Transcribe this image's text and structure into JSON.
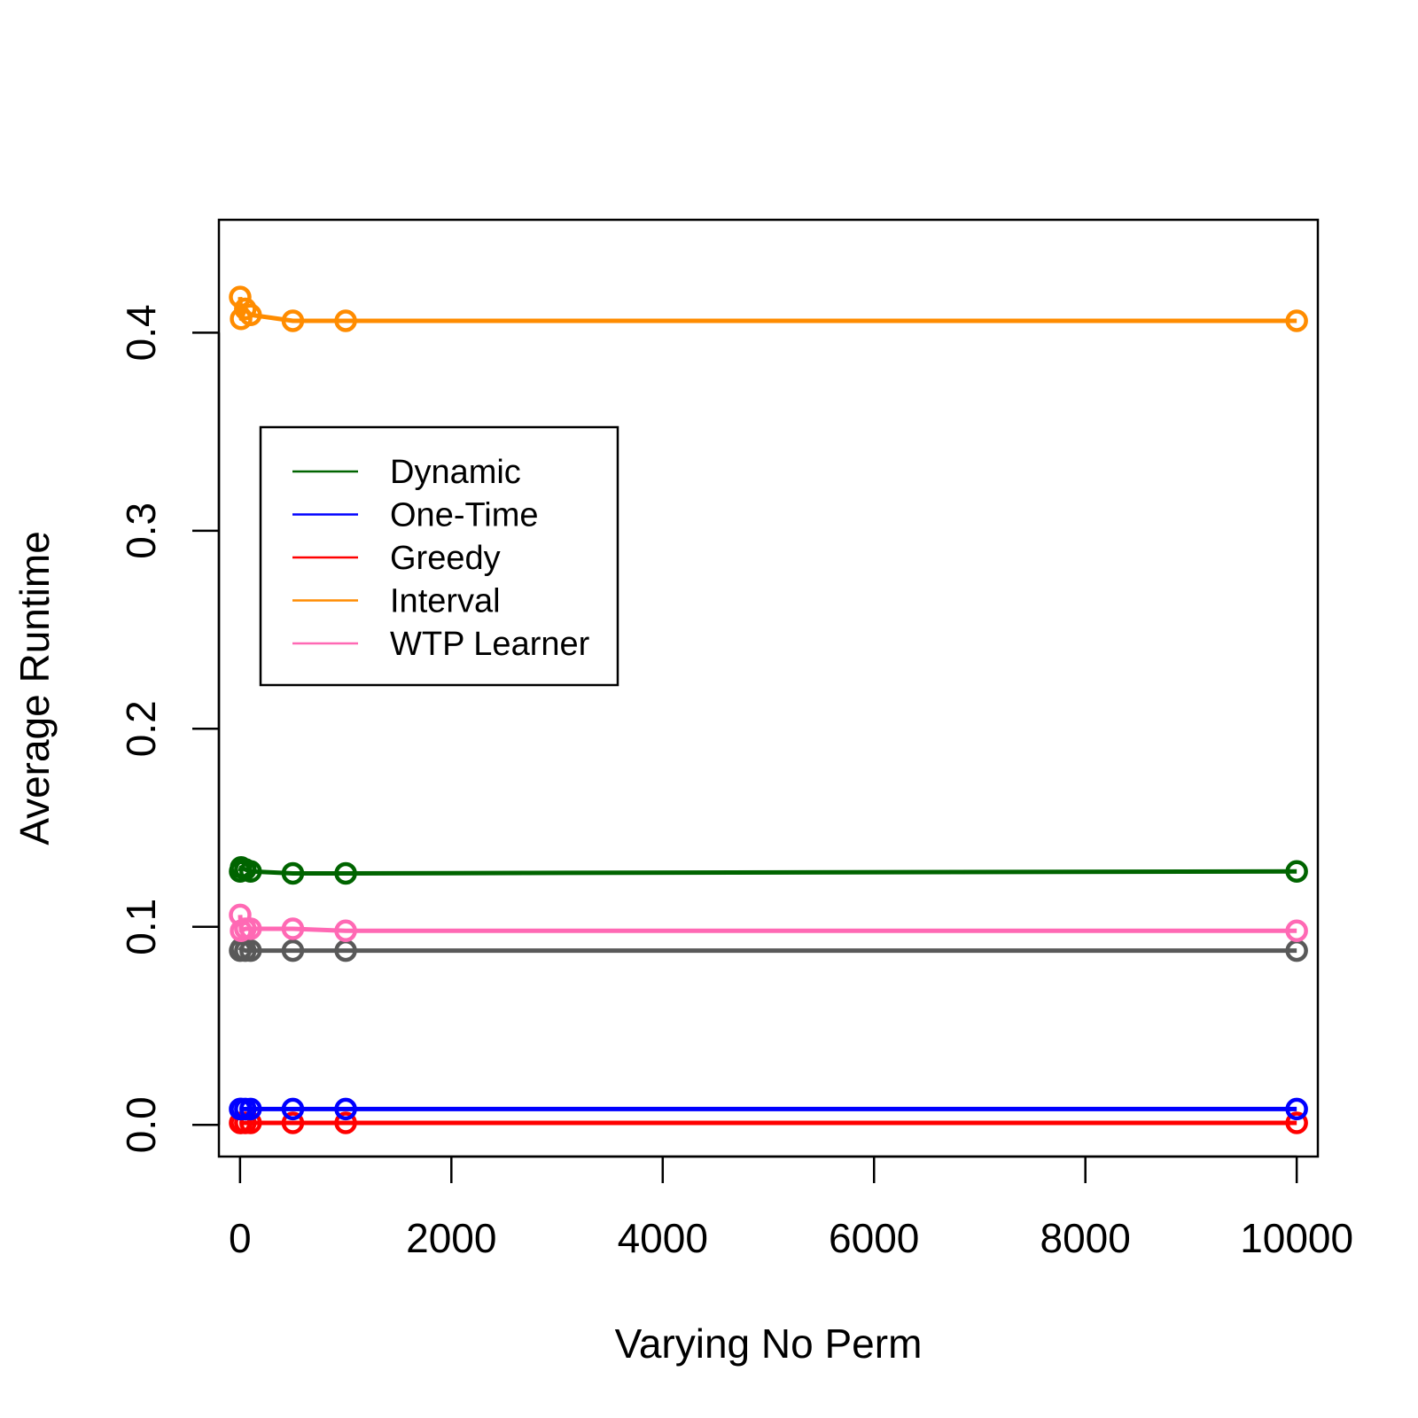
{
  "chart_data": {
    "type": "line",
    "xlabel": "Varying No Perm",
    "ylabel": "Average Runtime",
    "xlim": [
      -200,
      10200
    ],
    "ylim": [
      -0.016,
      0.457
    ],
    "xticks": [
      0,
      2000,
      4000,
      6000,
      8000,
      10000
    ],
    "xtick_labels": [
      "0",
      "2000",
      "4000",
      "6000",
      "8000",
      "10000"
    ],
    "yticks": [
      0.0,
      0.1,
      0.2,
      0.3,
      0.4
    ],
    "ytick_labels": [
      "0.0",
      "0.1",
      "0.2",
      "0.3",
      "0.4"
    ],
    "grid": false,
    "legend_position": "upper-left",
    "x": [
      1,
      10,
      50,
      100,
      500,
      1000,
      10000
    ],
    "series": [
      {
        "name": "Dynamic",
        "color": "#006400",
        "values": [
          0.128,
          0.13,
          0.129,
          0.128,
          0.127,
          0.127,
          0.128
        ],
        "in_legend": true
      },
      {
        "name": "One-Time",
        "color": "#0000ff",
        "values": [
          0.008,
          0.008,
          0.008,
          0.008,
          0.008,
          0.008,
          0.008
        ],
        "in_legend": true
      },
      {
        "name": "Greedy",
        "color": "#ff0000",
        "values": [
          0.001,
          0.001,
          0.001,
          0.001,
          0.001,
          0.001,
          0.001
        ],
        "in_legend": true
      },
      {
        "name": "Interval",
        "color": "#ff8c00",
        "values": [
          0.418,
          0.407,
          0.412,
          0.409,
          0.406,
          0.406,
          0.406
        ],
        "in_legend": true
      },
      {
        "name": "WTP Learner",
        "color": "#ff69b4",
        "values": [
          0.106,
          0.098,
          0.099,
          0.099,
          0.099,
          0.098,
          0.098
        ],
        "in_legend": true
      },
      {
        "color": "#595959",
        "values": [
          0.088,
          0.089,
          0.088,
          0.088,
          0.088,
          0.088,
          0.088
        ],
        "in_legend": false
      }
    ]
  }
}
